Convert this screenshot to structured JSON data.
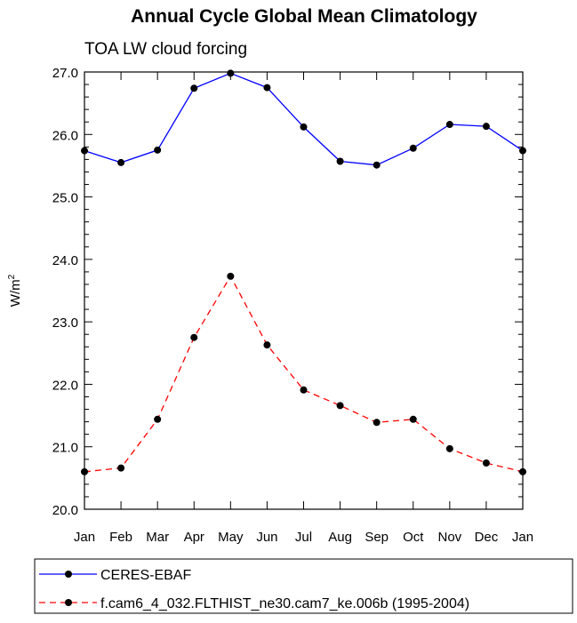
{
  "chart_data": {
    "type": "line",
    "title": "Annual Cycle Global Mean Climatology",
    "subtitle": "TOA LW cloud forcing",
    "ylabel_main": "W/m",
    "ylabel_sup": "2",
    "xlabel": "",
    "ylim": [
      20.0,
      27.0
    ],
    "yticks": [
      "20.0",
      "21.0",
      "22.0",
      "23.0",
      "24.0",
      "25.0",
      "26.0",
      "27.0"
    ],
    "categories": [
      "Jan",
      "Feb",
      "Mar",
      "Apr",
      "May",
      "Jun",
      "Jul",
      "Aug",
      "Sep",
      "Oct",
      "Nov",
      "Dec",
      "Jan"
    ],
    "series": [
      {
        "name": "CERES-EBAF",
        "color": "#0000ff",
        "dash": "solid",
        "values": [
          25.74,
          25.55,
          25.75,
          26.74,
          26.98,
          26.75,
          26.12,
          25.57,
          25.51,
          25.78,
          26.16,
          26.13,
          25.74
        ]
      },
      {
        "name": "f.cam6_4_032.FLTHIST_ne30.cam7_ke.006b (1995-2004)",
        "color": "#ff0000",
        "dash": "dashed",
        "values": [
          20.6,
          20.66,
          21.44,
          22.75,
          23.73,
          22.63,
          21.91,
          21.66,
          21.39,
          21.44,
          20.97,
          20.74,
          20.6
        ]
      }
    ],
    "legend_position": "bottom"
  }
}
